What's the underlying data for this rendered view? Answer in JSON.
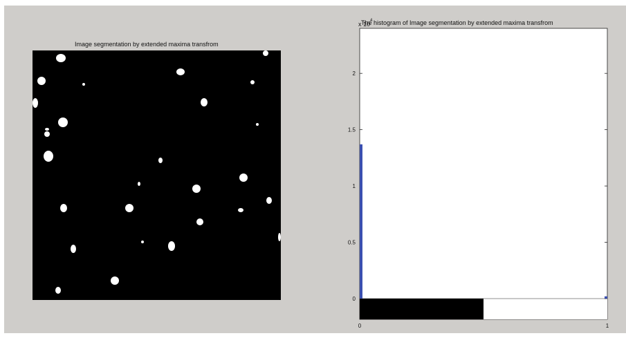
{
  "figure": {
    "left_title": "Image segmentation by extended maxima transfrom",
    "right_title": "The histogram of Image segmentation by extended maxima transfrom",
    "exponent_label": "x 10",
    "exponent_power": "4"
  },
  "chart_data": [
    {
      "type": "heatmap",
      "title": "Image segmentation by extended maxima transfrom",
      "colors": {
        "background": "#000000",
        "foreground": "#ffffff"
      },
      "values": [
        0,
        1
      ]
    },
    {
      "type": "bar",
      "title": "The histogram of Image segmentation by extended maxima transfrom",
      "x": [
        0,
        1
      ],
      "values": [
        13700,
        200
      ],
      "xlim": [
        0,
        1
      ],
      "ylim": [
        0,
        24000
      ],
      "yticks": [
        0,
        0.5,
        1,
        1.5,
        2
      ],
      "ytick_labels": [
        "0",
        "0.5",
        "1",
        "1.5",
        "2"
      ],
      "xticks": [
        0,
        1
      ],
      "xtick_labels": [
        "0",
        "1"
      ],
      "y_multiplier": "x 10^4",
      "bar_color": "#3a4fb0",
      "grid": false
    }
  ]
}
